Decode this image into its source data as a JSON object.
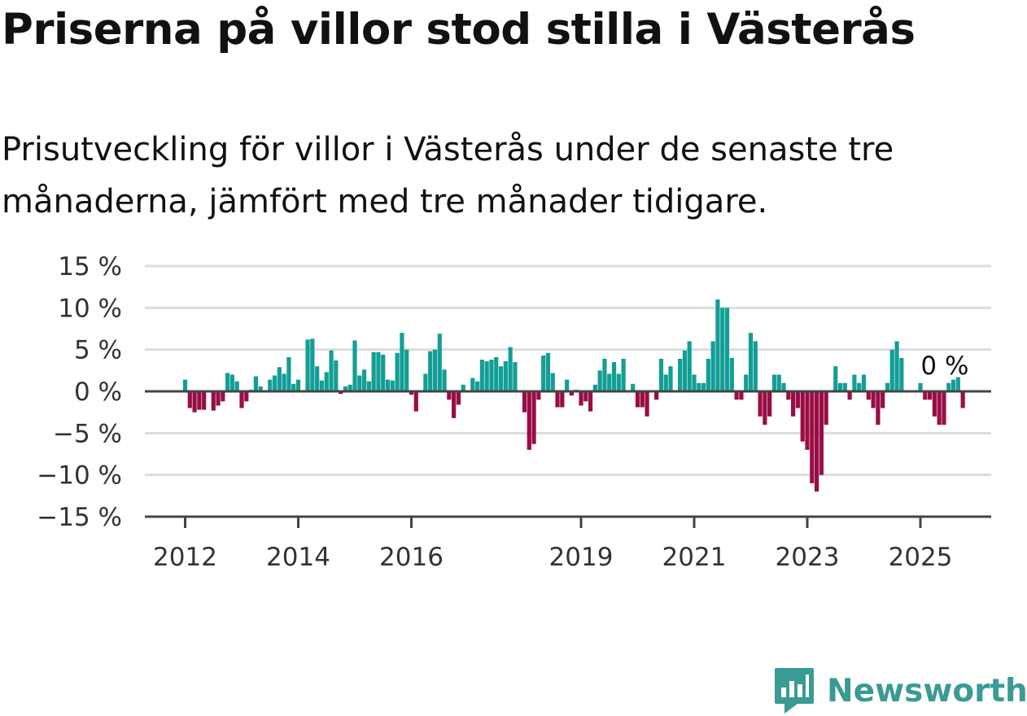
{
  "header": {
    "title": "Priserna på villor stod stilla i Västerås",
    "subtitle": "Prisutveckling för villor i Västerås under de senaste tre månaderna, jämfört med tre månader tidigare."
  },
  "branding": {
    "name": "Newsworthy",
    "color": "#3a9a94",
    "icon": "newsworthy-logo-icon"
  },
  "colors": {
    "positive": "#139e95",
    "negative": "#990d44",
    "grid": "#dddddd",
    "axis": "#444444"
  },
  "chart_data": {
    "type": "bar",
    "start": "2012-01",
    "ylim": [
      -15,
      15
    ],
    "y_ticks": [
      15,
      10,
      5,
      0,
      -5,
      -10,
      -15
    ],
    "y_tick_labels": [
      "15 %",
      "10 %",
      "5 %",
      "0 %",
      "−5 %",
      "−10 %",
      "−15 %"
    ],
    "x_ticks": [
      "2012",
      "2014",
      "2016",
      "2019",
      "2021",
      "2023",
      "2025"
    ],
    "end_label": "0 %",
    "values": [
      1.4,
      -2.0,
      -2.5,
      -2.2,
      -2.2,
      0.0,
      -2.3,
      -1.7,
      -1.2,
      2.2,
      2.0,
      1.2,
      -2.0,
      -1.2,
      0.2,
      1.8,
      0.6,
      0.0,
      1.4,
      1.9,
      2.9,
      2.1,
      4.1,
      0.9,
      1.4,
      0.0,
      6.2,
      6.3,
      3.0,
      1.3,
      2.3,
      4.9,
      3.7,
      -0.3,
      0.6,
      0.8,
      6.1,
      1.9,
      2.6,
      1.2,
      4.7,
      4.7,
      4.4,
      1.4,
      1.3,
      4.6,
      7.0,
      5.0,
      -0.4,
      -2.4,
      0.0,
      2.1,
      4.8,
      5.0,
      6.9,
      2.6,
      -1.0,
      -3.2,
      -1.6,
      0.8,
      0.0,
      1.6,
      1.2,
      3.8,
      3.6,
      3.8,
      4.1,
      3.0,
      3.6,
      5.3,
      3.5,
      0.0,
      -2.5,
      -7.0,
      -6.3,
      -1.0,
      4.3,
      4.6,
      2.2,
      -1.9,
      -1.9,
      1.4,
      -0.5,
      0.2,
      -1.7,
      -1.2,
      -2.4,
      0.8,
      2.5,
      3.9,
      2.1,
      3.5,
      2.1,
      3.9,
      0.0,
      0.9,
      -1.9,
      -1.9,
      -3.0,
      0.0,
      -1.0,
      3.9,
      2.0,
      3.0,
      0.0,
      3.9,
      4.9,
      6.0,
      2.0,
      1.0,
      1.0,
      3.9,
      6.0,
      11.0,
      10.0,
      10.0,
      4.0,
      -1.0,
      -1.0,
      2.0,
      7.0,
      6.0,
      -3.0,
      -4.0,
      -3.0,
      2.0,
      2.0,
      1.0,
      -1.0,
      -3.0,
      -2.0,
      -6.0,
      -7.0,
      -11.0,
      -12.0,
      -10.0,
      -4.0,
      0.0,
      3.0,
      1.0,
      1.0,
      -1.0,
      2.0,
      1.0,
      2.0,
      -1.0,
      -2.0,
      -4.0,
      -2.0,
      1.0,
      5.0,
      6.0,
      4.0,
      0.0,
      0.0,
      0.0,
      1.0,
      -1.0,
      -1.0,
      -3.0,
      -4.0,
      -4.0,
      1.0,
      1.4,
      1.7,
      -2.0,
      0.0
    ]
  }
}
